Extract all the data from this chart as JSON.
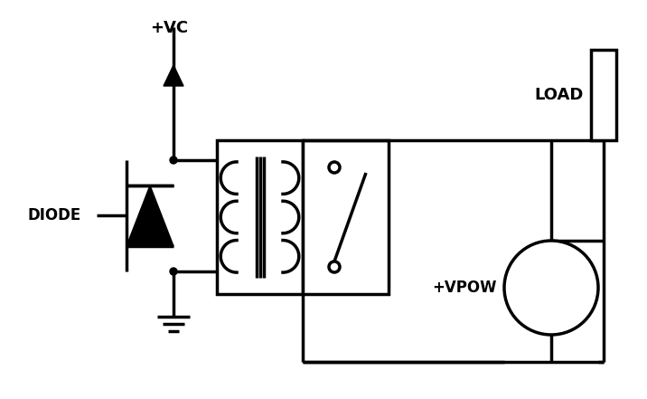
{
  "bg_color": "#ffffff",
  "line_color": "#000000",
  "lw": 2.5,
  "figsize": [
    7.16,
    4.41
  ],
  "dpi": 100,
  "labels": {
    "vc": "+VC",
    "diode": "DIODE",
    "vpow": "+VPOW",
    "load": "LOAD"
  }
}
